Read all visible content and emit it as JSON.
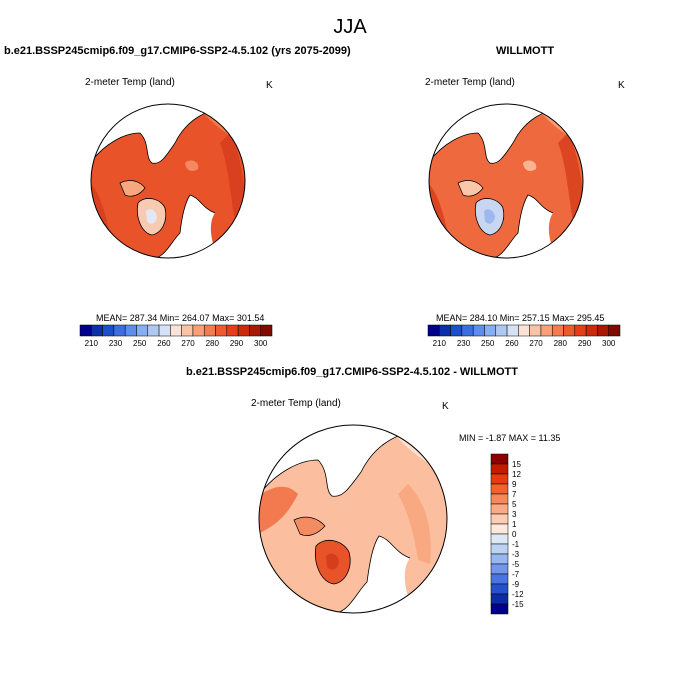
{
  "title": "JJA",
  "variable": "2-meter Temp (land)",
  "unit": "K",
  "panels": {
    "model": {
      "case_title": "b.e21.BSSP245cmip6.f09_g17.CMIP6-SSP2-4.5.102 (yrs 2075-2099)",
      "stats_text": "MEAN= 287.34  Min= 264.07  Max= 301.54",
      "mean": 287.34,
      "min": 264.07,
      "max": 301.54
    },
    "obs": {
      "case_title": "WILLMOTT",
      "stats_text": "MEAN= 284.10  Min= 257.15  Max= 295.45",
      "mean": 284.1,
      "min": 257.15,
      "max": 295.45
    },
    "diff": {
      "case_title": "b.e21.BSSP245cmip6.f09_g17.CMIP6-SSP2-4.5.102 - WILLMOTT",
      "stats_text": "MIN =  -1.87 MAX =  11.35",
      "min": -1.87,
      "max": 11.35
    }
  },
  "abs_colorbar": {
    "labels": [
      "210",
      "230",
      "250",
      "260",
      "270",
      "280",
      "290",
      "300"
    ],
    "colors": [
      "#00008b",
      "#0d2fa8",
      "#1c50c8",
      "#3b6fe0",
      "#5d8ded",
      "#86aef2",
      "#afc8f2",
      "#d5e2f5",
      "#fce3d6",
      "#fbc3a5",
      "#f89f78",
      "#f47a50",
      "#ee5a30",
      "#e43e1a",
      "#cc2a0c",
      "#a81805",
      "#7f0a00"
    ]
  },
  "diff_colorbar": {
    "labels": [
      "15",
      "12",
      "9",
      "7",
      "5",
      "3",
      "1",
      "0",
      "-1",
      "-3",
      "-5",
      "-7",
      "-9",
      "-12",
      "-15"
    ],
    "colors": [
      "#8b0000",
      "#c41a00",
      "#e83a10",
      "#f5602e",
      "#f8875a",
      "#fbaa86",
      "#fccdb4",
      "#fde8dc",
      "#dde8f6",
      "#bcd2f3",
      "#98b6ef",
      "#7196ea",
      "#4a74e2",
      "#2650cc",
      "#0c2ca6",
      "#00008b"
    ]
  }
}
